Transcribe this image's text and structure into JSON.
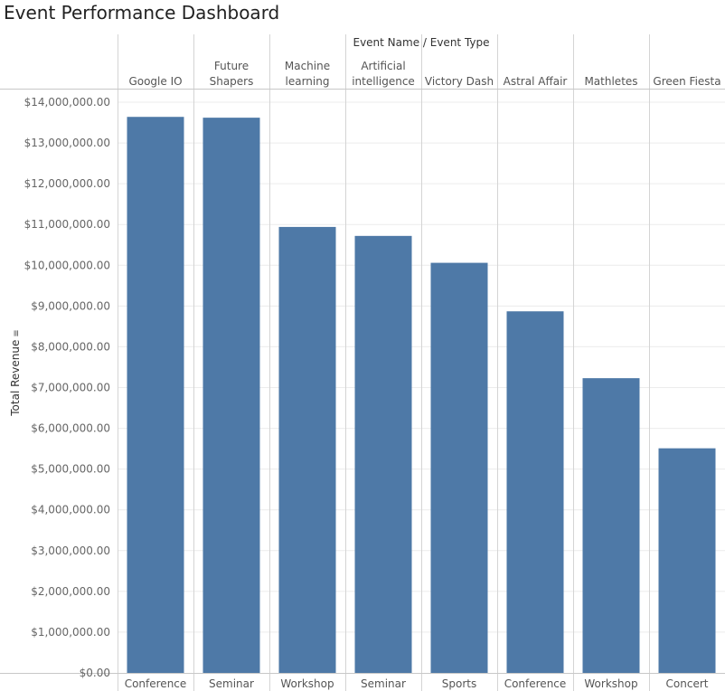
{
  "page_title": "Event Performance Dashboard",
  "chart_data": {
    "type": "bar",
    "header_label": "Event Name  /  Event Type",
    "ylabel": "Total Revenue",
    "ylim": [
      0,
      14000000
    ],
    "yticks": [
      0,
      1000000,
      2000000,
      3000000,
      4000000,
      5000000,
      6000000,
      7000000,
      8000000,
      9000000,
      10000000,
      11000000,
      12000000,
      13000000,
      14000000
    ],
    "ytick_labels": [
      "$0.00",
      "$1,000,000.00",
      "$2,000,000.00",
      "$3,000,000.00",
      "$4,000,000.00",
      "$5,000,000.00",
      "$6,000,000.00",
      "$7,000,000.00",
      "$8,000,000.00",
      "$9,000,000.00",
      "$10,000,000.00",
      "$11,000,000.00",
      "$12,000,000.00",
      "$13,000,000.00",
      "$14,000,000.00"
    ],
    "categories": [
      {
        "name": [
          "Google IO"
        ],
        "type": "Conference"
      },
      {
        "name": [
          "Future",
          "Shapers"
        ],
        "type": "Seminar"
      },
      {
        "name": [
          "Machine",
          "learning"
        ],
        "type": "Workshop"
      },
      {
        "name": [
          "Artificial",
          "intelligence"
        ],
        "type": "Seminar"
      },
      {
        "name": [
          "Victory Dash"
        ],
        "type": "Sports"
      },
      {
        "name": [
          "Astral Affair"
        ],
        "type": "Conference"
      },
      {
        "name": [
          "Mathletes"
        ],
        "type": "Workshop"
      },
      {
        "name": [
          "Green Fiesta"
        ],
        "type": "Concert"
      }
    ],
    "values": [
      13640000,
      13620000,
      10940000,
      10720000,
      10060000,
      8870000,
      7230000,
      5510000
    ],
    "bar_color": "#4e79a7",
    "grid": true
  }
}
